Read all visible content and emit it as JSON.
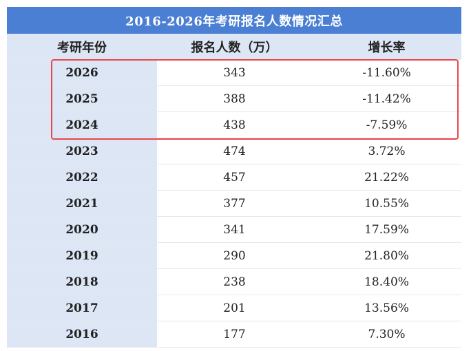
{
  "table": {
    "title": "2016-2026年考研报名人数情况汇总",
    "header": [
      "考研年份",
      "报名人数（万）",
      "增长率"
    ],
    "rows": [
      [
        "2026",
        "343",
        "-11.60%"
      ],
      [
        "2025",
        "388",
        "-11.42%"
      ],
      [
        "2024",
        "438",
        "-7.59%"
      ],
      [
        "2023",
        "474",
        "3.72%"
      ],
      [
        "2022",
        "457",
        "21.22%"
      ],
      [
        "2021",
        "377",
        "10.55%"
      ],
      [
        "2020",
        "341",
        "17.59%"
      ],
      [
        "2019",
        "290",
        "21.80%"
      ],
      [
        "2018",
        "238",
        "18.40%"
      ],
      [
        "2017",
        "201",
        "13.56%"
      ],
      [
        "2016",
        "177",
        "7.30%"
      ]
    ]
  }
}
